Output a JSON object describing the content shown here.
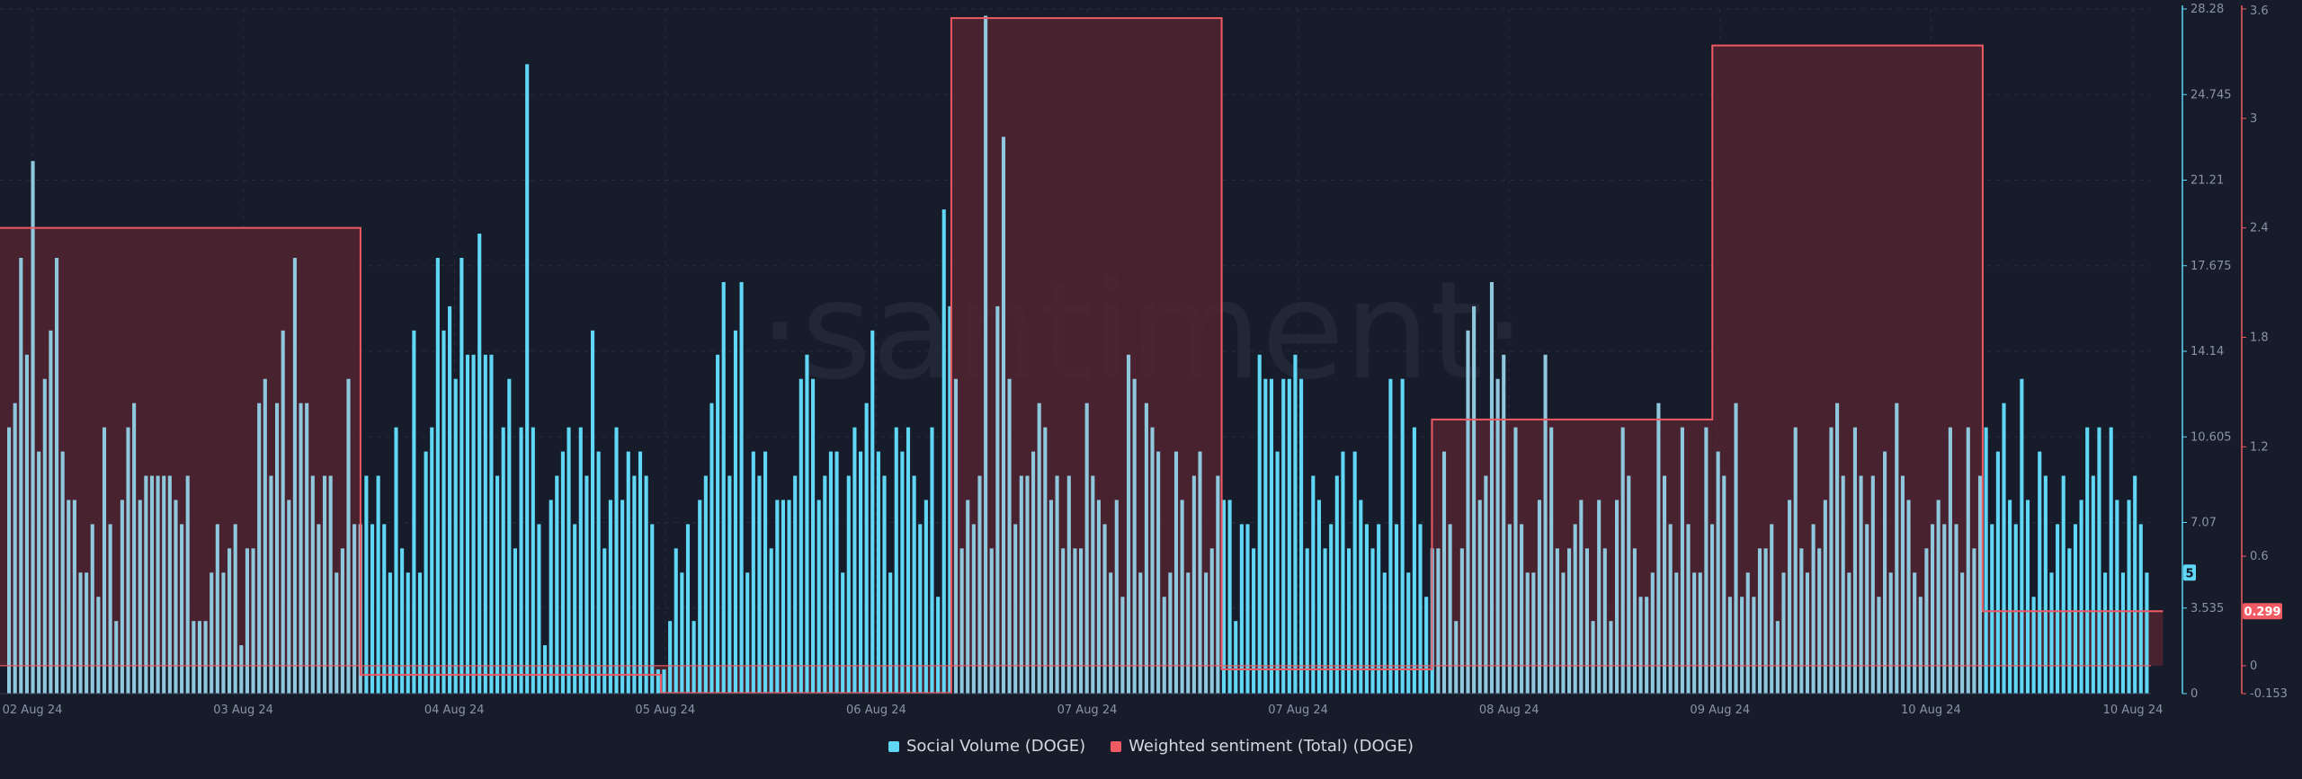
{
  "watermark": "·santiment·",
  "chart_data": {
    "type": "bar",
    "x_start": "02 Aug 24",
    "x_end": "10 Aug 24",
    "x_tick_labels": [
      "02 Aug 24",
      "03 Aug 24",
      "04 Aug 24",
      "05 Aug 24",
      "06 Aug 24",
      "07 Aug 24",
      "07 Aug 24",
      "08 Aug 24",
      "09 Aug 24",
      "10 Aug 24",
      "10 Aug 24"
    ],
    "y_left_ticks": [
      "0",
      "3.535",
      "7.07",
      "10.605",
      "14.14",
      "17.675",
      "21.21",
      "24.745",
      "28.28"
    ],
    "y_left_range": [
      0,
      28.28
    ],
    "y_right_ticks": [
      "-0.153",
      "0",
      "0.6",
      "1.2",
      "1.8",
      "2.4",
      "3",
      "3.6"
    ],
    "y_right_range": [
      -0.153,
      3.6
    ],
    "legend_position": "bottom-center",
    "series": [
      {
        "name": "Social Volume (DOGE)",
        "type": "bar",
        "color": "#5fd7f5",
        "last_value": "5",
        "values": [
          11,
          12,
          18,
          14,
          22,
          10,
          13,
          15,
          18,
          10,
          8,
          8,
          5,
          5,
          7,
          4,
          11,
          7,
          3,
          8,
          11,
          12,
          8,
          9,
          9,
          9,
          9,
          9,
          8,
          7,
          9,
          3,
          3,
          3,
          5,
          7,
          5,
          6,
          7,
          2,
          6,
          6,
          12,
          13,
          9,
          12,
          15,
          8,
          18,
          12,
          12,
          9,
          7,
          9,
          9,
          5,
          6,
          13,
          7,
          7,
          9,
          7,
          9,
          7,
          5,
          11,
          6,
          5,
          15,
          5,
          10,
          11,
          18,
          15,
          16,
          13,
          18,
          14,
          14,
          19,
          14,
          14,
          9,
          11,
          13,
          6,
          11,
          26,
          11,
          7,
          2,
          8,
          9,
          10,
          11,
          7,
          11,
          9,
          15,
          10,
          6,
          8,
          11,
          8,
          10,
          9,
          10,
          9,
          7,
          1,
          1,
          3,
          6,
          5,
          7,
          3,
          8,
          9,
          12,
          14,
          17,
          9,
          15,
          17,
          5,
          10,
          9,
          10,
          6,
          8,
          8,
          8,
          9,
          13,
          14,
          13,
          8,
          9,
          10,
          10,
          5,
          9,
          11,
          10,
          12,
          15,
          10,
          9,
          5,
          11,
          10,
          11,
          9,
          7,
          8,
          11,
          4,
          20,
          16,
          13,
          6,
          8,
          7,
          9,
          28,
          6,
          16,
          23,
          13,
          7,
          9,
          9,
          10,
          12,
          11,
          8,
          9,
          6,
          9,
          6,
          6,
          12,
          9,
          8,
          7,
          5,
          8,
          4,
          14,
          13,
          5,
          12,
          11,
          10,
          4,
          5,
          10,
          8,
          5,
          9,
          10,
          5,
          6,
          9,
          8,
          8,
          3,
          7,
          7,
          6,
          14,
          13,
          13,
          10,
          13,
          13,
          14,
          13,
          6,
          9,
          8,
          6,
          7,
          9,
          10,
          6,
          10,
          8,
          7,
          6,
          7,
          5,
          13,
          7,
          13,
          5,
          11,
          7,
          4,
          6,
          6,
          10,
          7,
          3,
          6,
          15,
          16,
          8,
          9,
          17,
          13,
          14,
          7,
          11,
          7,
          5,
          5,
          8,
          14,
          11,
          6,
          5,
          6,
          7,
          8,
          6,
          3,
          8,
          6,
          3,
          8,
          11,
          9,
          6,
          4,
          4,
          5,
          12,
          9,
          7,
          5,
          11,
          7,
          5,
          5,
          11,
          7,
          10,
          9,
          4,
          12,
          4,
          5,
          4,
          6,
          6,
          7,
          3,
          5,
          8,
          11,
          6,
          5,
          7,
          6,
          8,
          11,
          12,
          9,
          5,
          11,
          9,
          7,
          9,
          4,
          10,
          5,
          12,
          9,
          8,
          5,
          4,
          6,
          7,
          8,
          7,
          11,
          7,
          5,
          11,
          6,
          9,
          11,
          7,
          10,
          12,
          8,
          7,
          13,
          8,
          4,
          10,
          9,
          5,
          7,
          9,
          6,
          7,
          8,
          11,
          9,
          11,
          5,
          11,
          8,
          5,
          8,
          9,
          7,
          5
        ]
      },
      {
        "name": "Weighted sentiment (Total) (DOGE)",
        "type": "area-step",
        "color": "#f05a63",
        "last_value": "0.299",
        "steps": [
          {
            "from": "02 Aug 24 00:00",
            "to": "03 Aug 24 12:00",
            "value": 2.4
          },
          {
            "from": "03 Aug 24 12:00",
            "to": "04 Aug 24 18:00",
            "value": -0.05
          },
          {
            "from": "04 Aug 24 18:00",
            "to": "05 Aug 24 23:00",
            "value": -0.15
          },
          {
            "from": "05 Aug 24 23:00",
            "to": "07 Aug 24 02:00",
            "value": 3.55
          },
          {
            "from": "07 Aug 24 02:00",
            "to": "07 Aug 24 23:00",
            "value": -0.02
          },
          {
            "from": "07 Aug 24 23:00",
            "to": "09 Aug 24 03:00",
            "value": 1.35
          },
          {
            "from": "09 Aug 24 03:00",
            "to": "10 Aug 24 06:00",
            "value": 3.4
          },
          {
            "from": "10 Aug 24 06:00",
            "to": "10 Aug 24 24:00",
            "value": 0.299
          }
        ]
      }
    ]
  }
}
